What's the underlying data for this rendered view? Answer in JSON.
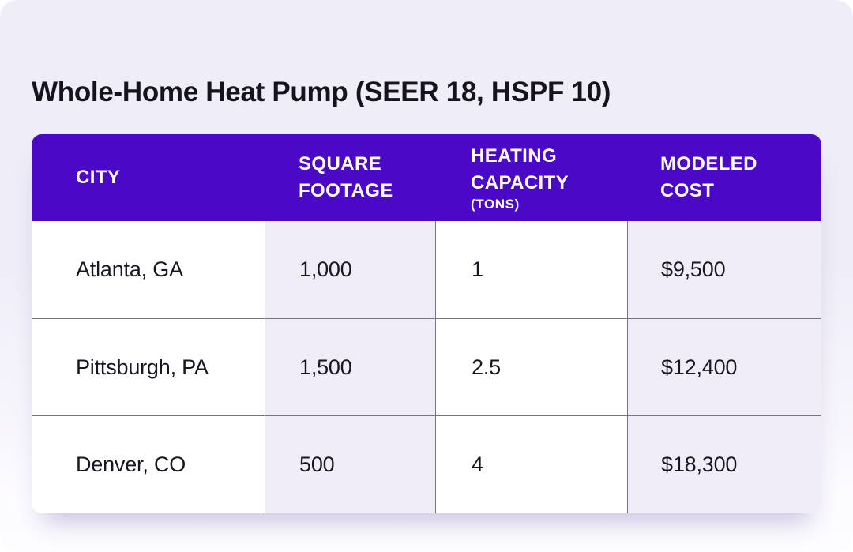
{
  "page": {
    "title": "Whole-Home Heat Pump (SEER 18, HSPF 10)"
  },
  "colors": {
    "header_bg": "#4a08c7",
    "header_text": "#ffffff",
    "accent_cell_bg": "#f0edf9",
    "page_bg_top": "#efedf8",
    "page_bg_bottom": "#fdfdff",
    "divider": "#7a7481",
    "body_text": "#1a1620",
    "title_text": "#17131c"
  },
  "table": {
    "columns": [
      {
        "label": "CITY",
        "unit": ""
      },
      {
        "label": "SQUARE FOOTAGE",
        "unit": ""
      },
      {
        "label": "HEATING CAPACITY",
        "unit": "(TONS)"
      },
      {
        "label": "MODELED COST",
        "unit": ""
      }
    ],
    "rows": [
      {
        "city": "Atlanta, GA",
        "square_footage": "1,000",
        "heating_capacity_tons": "1",
        "modeled_cost": "$9,500"
      },
      {
        "city": "Pittsburgh, PA",
        "square_footage": "1,500",
        "heating_capacity_tons": "2.5",
        "modeled_cost": "$12,400"
      },
      {
        "city": "Denver, CO",
        "square_footage": "500",
        "heating_capacity_tons": "4",
        "modeled_cost": "$18,300"
      }
    ]
  },
  "chart_data": {
    "type": "table",
    "title": "Whole-Home Heat Pump (SEER 18, HSPF 10)",
    "columns": [
      "CITY",
      "SQUARE FOOTAGE",
      "HEATING CAPACITY (TONS)",
      "MODELED COST"
    ],
    "rows": [
      [
        "Atlanta, GA",
        1000,
        1,
        9500
      ],
      [
        "Pittsburgh, PA",
        1500,
        2.5,
        12400
      ],
      [
        "Denver, CO",
        500,
        4,
        18300
      ]
    ],
    "units": {
      "MODELED COST": "USD",
      "HEATING CAPACITY": "tons",
      "SQUARE FOOTAGE": "sq ft"
    }
  }
}
